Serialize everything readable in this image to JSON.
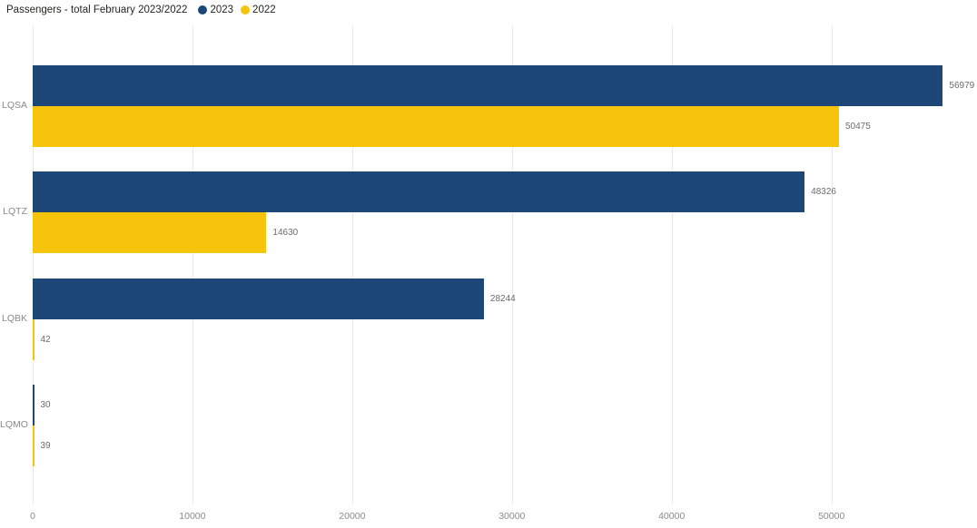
{
  "header": {
    "title": "Passengers - total February 2023/2022"
  },
  "colors": {
    "series_2023": "#1d4777",
    "series_2022": "#f5c40b",
    "gridline": "#e8e8e8",
    "axis_label": "#8a8a8a",
    "value_label": "#6b6b6b",
    "title_text": "#252423",
    "background": "#ffffff"
  },
  "chart_data": {
    "type": "bar",
    "orientation": "horizontal",
    "title": "Passengers - total February 2023/2022",
    "categories": [
      "LQSA",
      "LQTZ",
      "LQBK",
      "LQMO"
    ],
    "series": [
      {
        "name": "2023",
        "color": "#1d4777",
        "values": [
          56979,
          48326,
          28244,
          30
        ]
      },
      {
        "name": "2022",
        "color": "#f5c40b",
        "values": [
          50475,
          14630,
          42,
          39
        ]
      }
    ],
    "x_ticks": [
      0,
      10000,
      20000,
      30000,
      40000,
      50000
    ],
    "xlim": [
      0,
      59000
    ],
    "ylabel": "",
    "xlabel": "",
    "grid": true,
    "legend_position": "top",
    "value_labels_shown": true
  }
}
